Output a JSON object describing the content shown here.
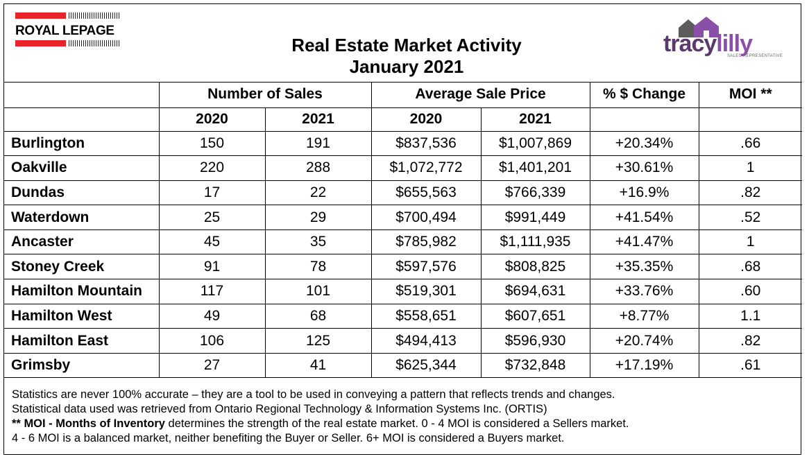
{
  "brand": {
    "royal_lepage": "ROYAL LEPAGE",
    "tracy": "tracy",
    "lilly": "lilly",
    "tracylilly_tagline": "SALES REPRESENTATIVE",
    "colors": {
      "rlp_red": "#e8232a",
      "tracy_purple": "#5a3a6e",
      "lilly_purple": "#8a4fa8"
    }
  },
  "title": {
    "line1": "Real Estate Market Activity",
    "line2": "January 2021"
  },
  "table": {
    "group_headers": {
      "sales": "Number of Sales",
      "price": "Average Sale Price",
      "change": "% $ Change",
      "moi": "MOI **"
    },
    "year_headers": [
      "2020",
      "2021",
      "2020",
      "2021"
    ],
    "rows": [
      {
        "city": "Burlington",
        "sales2020": "150",
        "sales2021": "191",
        "price2020": "$837,536",
        "price2021": "$1,007,869",
        "change": "+20.34%",
        "moi": ".66"
      },
      {
        "city": "Oakville",
        "sales2020": "220",
        "sales2021": "288",
        "price2020": "$1,072,772",
        "price2021": "$1,401,201",
        "change": "+30.61%",
        "moi": "1"
      },
      {
        "city": "Dundas",
        "sales2020": "17",
        "sales2021": "22",
        "price2020": "$655,563",
        "price2021": "$766,339",
        "change": "+16.9%",
        "moi": ".82"
      },
      {
        "city": "Waterdown",
        "sales2020": "25",
        "sales2021": "29",
        "price2020": "$700,494",
        "price2021": "$991,449",
        "change": "+41.54%",
        "moi": ".52"
      },
      {
        "city": "Ancaster",
        "sales2020": "45",
        "sales2021": "35",
        "price2020": "$785,982",
        "price2021": "$1,111,935",
        "change": "+41.47%",
        "moi": "1"
      },
      {
        "city": "Stoney Creek",
        "sales2020": "91",
        "sales2021": "78",
        "price2020": "$597,576",
        "price2021": "$808,825",
        "change": "+35.35%",
        "moi": ".68"
      },
      {
        "city": "Hamilton Mountain",
        "sales2020": "117",
        "sales2021": "101",
        "price2020": "$519,301",
        "price2021": "$694,631",
        "change": "+33.76%",
        "moi": ".60"
      },
      {
        "city": "Hamilton West",
        "sales2020": "49",
        "sales2021": "68",
        "price2020": "$558,651",
        "price2021": "$607,651",
        "change": "+8.77%",
        "moi": "1.1"
      },
      {
        "city": "Hamilton East",
        "sales2020": "106",
        "sales2021": "125",
        "price2020": "$494,413",
        "price2021": "$596,930",
        "change": "+20.74%",
        "moi": ".82"
      },
      {
        "city": "Grimsby",
        "sales2020": "27",
        "sales2021": "41",
        "price2020": "$625,344",
        "price2021": "$732,848",
        "change": "+17.19%",
        "moi": ".61"
      }
    ]
  },
  "notes": {
    "line1": "Statistics are never 100% accurate – they are a tool to be used in conveying a pattern that reflects trends and changes.",
    "line2": "Statistical data used was retrieved from Ontario Regional Technology & Information Systems Inc. (ORTIS)",
    "line3_prefix": "** ",
    "line3_bold": "MOI - Months of Inventory",
    "line3_rest": " determines the strength of the real estate market. 0 - 4 MOI is considered a Sellers market.",
    "line4": "4 - 6 MOI is a balanced market, neither benefiting the Buyer or Seller. 6+ MOI is considered a Buyers market."
  }
}
